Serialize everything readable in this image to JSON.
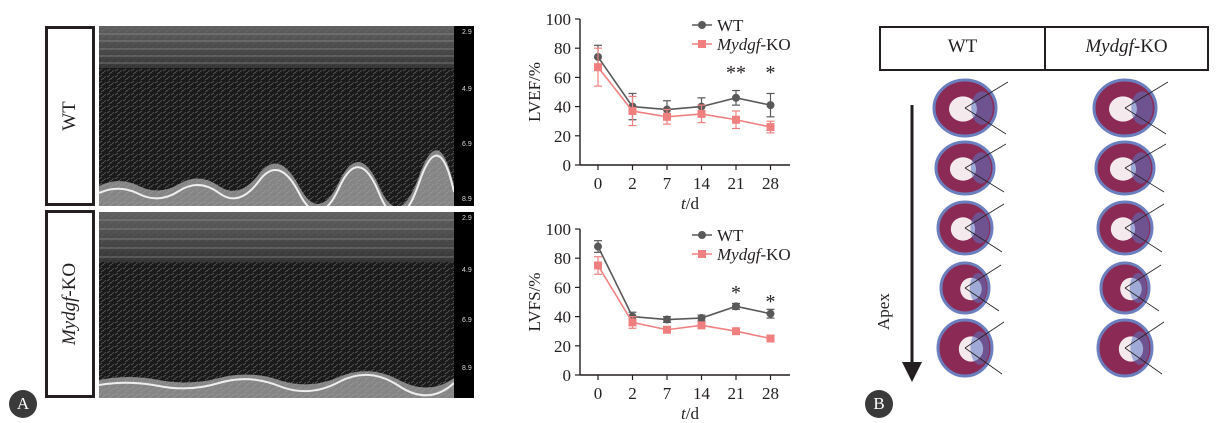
{
  "panels": {
    "a": "A",
    "b": "B"
  },
  "echo_rows": [
    {
      "label": "WT"
    },
    {
      "label": "Mydgf-KO",
      "italic": "Mydgf",
      "suffix": "-KO"
    }
  ],
  "echo_scale_ticks": [
    "2.9",
    "4.9",
    "6.9",
    "8.9"
  ],
  "colors": {
    "wt": "#595959",
    "ko": "#f08080",
    "axis": "#231f20"
  },
  "chart_data": [
    {
      "type": "line",
      "ylabel": "LVEF/%",
      "xlabel_italic": "t",
      "xlabel_suffix": "/d",
      "x": [
        "0",
        "2",
        "7",
        "14",
        "21",
        "28"
      ],
      "yticks": [
        0,
        20,
        40,
        60,
        80,
        100
      ],
      "ylim": [
        0,
        100
      ],
      "legend_position": "top-right",
      "series": [
        {
          "name": "WT",
          "values": [
            74,
            40,
            38,
            40,
            46,
            41
          ],
          "err": [
            8,
            9,
            6,
            6,
            5,
            8
          ]
        },
        {
          "name": "Mydgf-KO",
          "name_italic": "Mydgf",
          "name_suffix": "-KO",
          "values": [
            67,
            37,
            33,
            35,
            31,
            26
          ],
          "err": [
            13,
            10,
            5,
            6,
            6,
            4
          ]
        }
      ],
      "annotations": [
        {
          "x": "21",
          "text": "**",
          "y": 59
        },
        {
          "x": "28",
          "text": "*",
          "y": 59
        }
      ]
    },
    {
      "type": "line",
      "ylabel": "LVFS/%",
      "xlabel_italic": "t",
      "xlabel_suffix": "/d",
      "x": [
        "0",
        "2",
        "7",
        "14",
        "21",
        "28"
      ],
      "yticks": [
        0,
        20,
        40,
        60,
        80,
        100
      ],
      "ylim": [
        0,
        100
      ],
      "legend_position": "top-right",
      "series": [
        {
          "name": "WT",
          "values": [
            88,
            40,
            38,
            39,
            47,
            42
          ],
          "err": [
            4,
            3,
            2,
            2,
            2,
            3
          ]
        },
        {
          "name": "Mydgf-KO",
          "name_italic": "Mydgf",
          "name_suffix": "-KO",
          "values": [
            75,
            36,
            31,
            34,
            30,
            25
          ],
          "err": [
            6,
            4,
            2,
            2,
            2,
            1
          ]
        }
      ],
      "annotations": [
        {
          "x": "21",
          "text": "*",
          "y": 52
        },
        {
          "x": "28",
          "text": "*",
          "y": 46
        }
      ]
    }
  ],
  "panel_b": {
    "columns": [
      {
        "label": "WT"
      },
      {
        "label": "Mydgf-KO",
        "italic": "Mydgf",
        "suffix": "-KO"
      }
    ],
    "axis_label": "Apex",
    "sections_per_column": 5
  }
}
